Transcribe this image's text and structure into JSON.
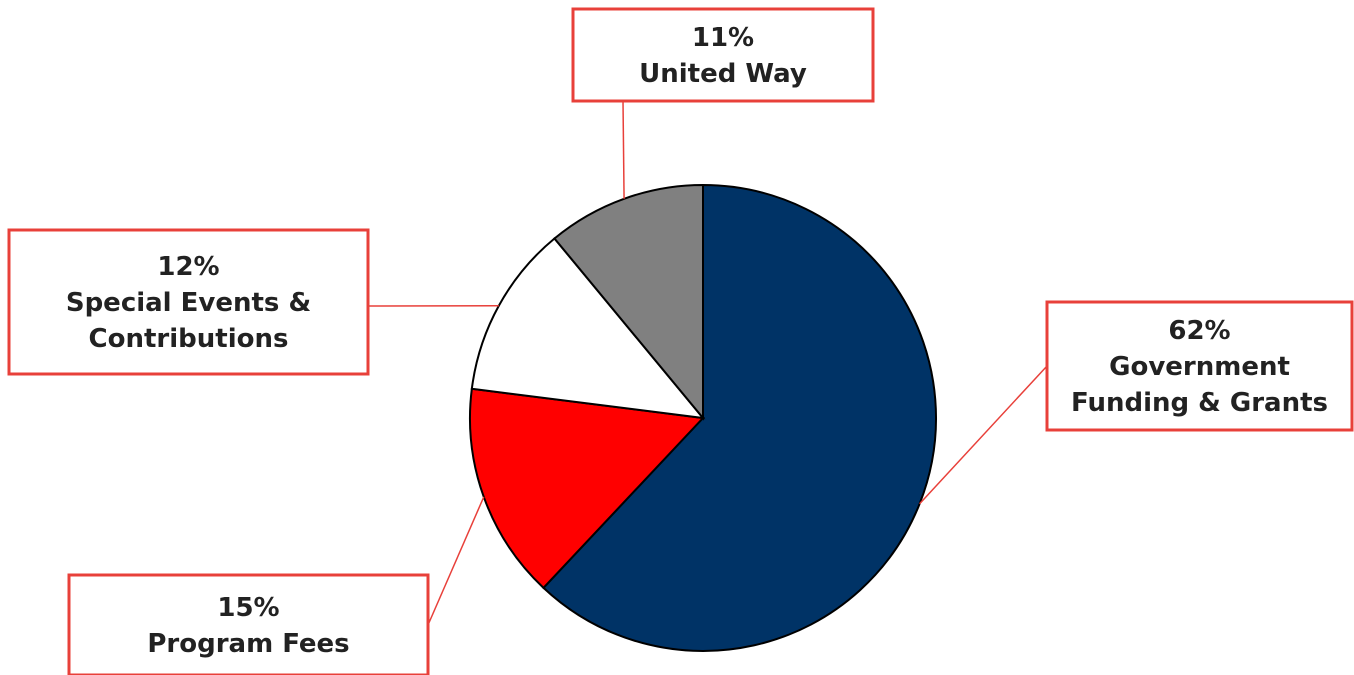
{
  "chart_data": {
    "type": "pie",
    "start_angle_deg": 0,
    "direction": "clockwise",
    "slices": [
      {
        "label": "Government Funding & Grants",
        "percent_label": "62%",
        "value": 62,
        "color": "#003366"
      },
      {
        "label": "Program Fees",
        "percent_label": "15%",
        "value": 15,
        "color": "#ff0000"
      },
      {
        "label": "Special Events & Contributions",
        "percent_label": "12%",
        "value": 12,
        "color": "#ffffff"
      },
      {
        "label": "United Way",
        "percent_label": "11%",
        "value": 11,
        "color": "#808080"
      }
    ],
    "callout_border_color": "#e8403a",
    "leader_line_color": "#e8403a",
    "slice_outline_color": "#000000"
  }
}
